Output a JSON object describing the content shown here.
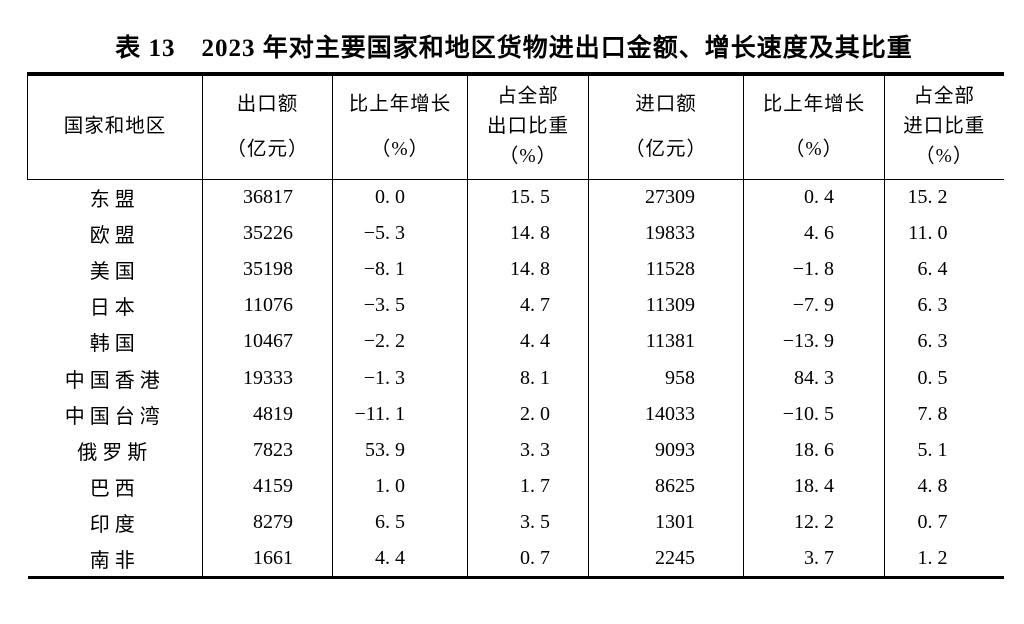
{
  "page": {
    "background_color": "#ffffff",
    "text_color": "#000000",
    "border_color": "#000000"
  },
  "title": "表 13　2023 年对主要国家和地区货物进出口金额、增长速度及其比重",
  "table": {
    "columns": [
      {
        "id": "region",
        "lines": [
          "国家和地区"
        ]
      },
      {
        "id": "export_value",
        "lines": [
          "出口额",
          "（亿元）"
        ]
      },
      {
        "id": "export_growth",
        "lines": [
          "比上年增长",
          "（%）"
        ]
      },
      {
        "id": "export_share",
        "lines": [
          "占全部",
          "出口比重",
          "（%）"
        ]
      },
      {
        "id": "import_value",
        "lines": [
          "进口额",
          "（亿元）"
        ]
      },
      {
        "id": "import_growth",
        "lines": [
          "比上年增长",
          "（%）"
        ]
      },
      {
        "id": "import_share",
        "lines": [
          "占全部",
          "进口比重",
          "（%）"
        ]
      }
    ],
    "rows": [
      [
        "东盟",
        "36817",
        "0. 0",
        "15. 5",
        "27309",
        "0. 4",
        "15. 2"
      ],
      [
        "欧盟",
        "35226",
        "−5. 3",
        "14. 8",
        "19833",
        "4. 6",
        "11. 0"
      ],
      [
        "美国",
        "35198",
        "−8. 1",
        "14. 8",
        "11528",
        "−1. 8",
        "6. 4"
      ],
      [
        "日本",
        "11076",
        "−3. 5",
        "4. 7",
        "11309",
        "−7. 9",
        "6. 3"
      ],
      [
        "韩国",
        "10467",
        "−2. 2",
        "4. 4",
        "11381",
        "−13. 9",
        "6. 3"
      ],
      [
        "中国香港",
        "19333",
        "−1. 3",
        "8. 1",
        "958",
        "84. 3",
        "0. 5"
      ],
      [
        "中国台湾",
        "4819",
        "−11. 1",
        "2. 0",
        "14033",
        "−10. 5",
        "7. 8"
      ],
      [
        "俄罗斯",
        "7823",
        "53. 9",
        "3. 3",
        "9093",
        "18. 6",
        "5. 1"
      ],
      [
        "巴西",
        "4159",
        "1. 0",
        "1. 7",
        "8625",
        "18. 4",
        "4. 8"
      ],
      [
        "印度",
        "8279",
        "6. 5",
        "3. 5",
        "1301",
        "12. 2",
        "0. 7"
      ],
      [
        "南非",
        "1661",
        "4. 4",
        "0. 7",
        "2245",
        "3. 7",
        "1. 2"
      ]
    ]
  }
}
